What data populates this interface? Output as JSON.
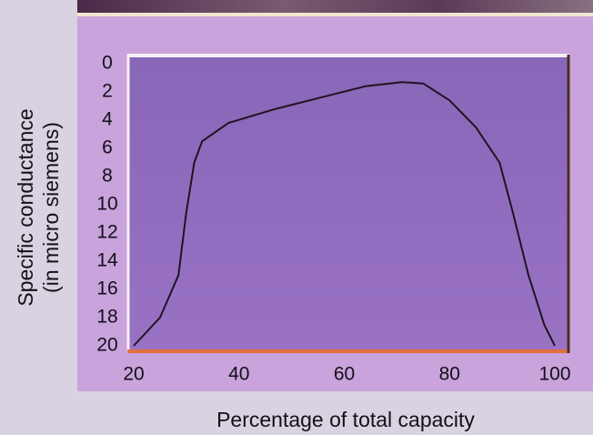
{
  "chart_data": {
    "type": "line",
    "ylabel": "Specific conductance",
    "ylabel_note": "(in micro siemens)",
    "xlabel": "Percentage of total capacity",
    "x": [
      20,
      25,
      28.5,
      30,
      31.5,
      33,
      38,
      47,
      55.5,
      64,
      71,
      75,
      80,
      85,
      89.5,
      92,
      95,
      98,
      100
    ],
    "values": [
      20,
      18,
      15,
      10.5,
      7,
      5.5,
      4.2,
      3.2,
      2.4,
      1.6,
      1.3,
      1.4,
      2.6,
      4.5,
      7,
      10.5,
      15,
      18.5,
      20
    ],
    "color": "#1e1420",
    "xlim": [
      20,
      100
    ],
    "xticks": [
      20,
      40,
      60,
      80,
      100
    ],
    "ylim": [
      0,
      20
    ],
    "yticks": [
      0,
      2,
      4,
      6,
      8,
      10,
      12,
      14,
      16,
      18,
      20
    ],
    "y_reversed": true
  }
}
